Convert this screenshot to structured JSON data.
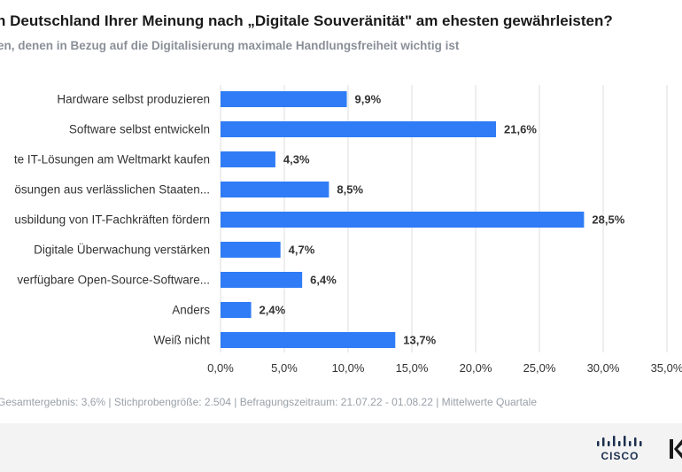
{
  "header": {
    "title": "n Deutschland Ihrer Meinung nach „Digitale Souveränität\" am ehesten gewährleisten?",
    "subtitle": "en, denen in Bezug auf die Digitalisierung maximale Handlungsfreiheit wichtig ist"
  },
  "chart_data": {
    "type": "bar",
    "orientation": "horizontal",
    "categories": [
      "Hardware selbst produzieren",
      "Software selbst entwickeln",
      "te IT-Lösungen am Weltmarkt kaufen",
      "ösungen aus verlässlichen Staaten...",
      "usbildung von IT-Fachkräften fördern",
      "Digitale Überwachung verstärken",
      " verfügbare Open-Source-Software...",
      "Anders",
      "Weiß nicht"
    ],
    "values": [
      9.9,
      21.6,
      4.3,
      8.5,
      28.5,
      4.7,
      6.4,
      2.4,
      13.7
    ],
    "value_labels": [
      "9,9%",
      "21,6%",
      "4,3%",
      "8,5%",
      "28,5%",
      "4,7%",
      "6,4%",
      "2,4%",
      "13,7%"
    ],
    "xlim": [
      0,
      35
    ],
    "x_ticks": [
      0,
      5,
      10,
      15,
      20,
      25,
      30,
      35
    ],
    "x_tick_labels": [
      "0,0%",
      "5,0%",
      "10,0%",
      "15,0%",
      "20,0%",
      "25,0%",
      "30,0%",
      "35,0%"
    ],
    "grid": true,
    "bar_color": "#2f7cf6"
  },
  "footer": {
    "note": "Gesamtergebnis: 3,6% | Stichprobengröße: 2.504 | Befragungszeitraum: 21.07.22 - 01.08.22 | Mittelwerte Quartale",
    "logo_text": "CISCO"
  },
  "colors": {
    "grid": "#dcdcdc",
    "label": "#333333",
    "logo": "#1b2f4e"
  }
}
